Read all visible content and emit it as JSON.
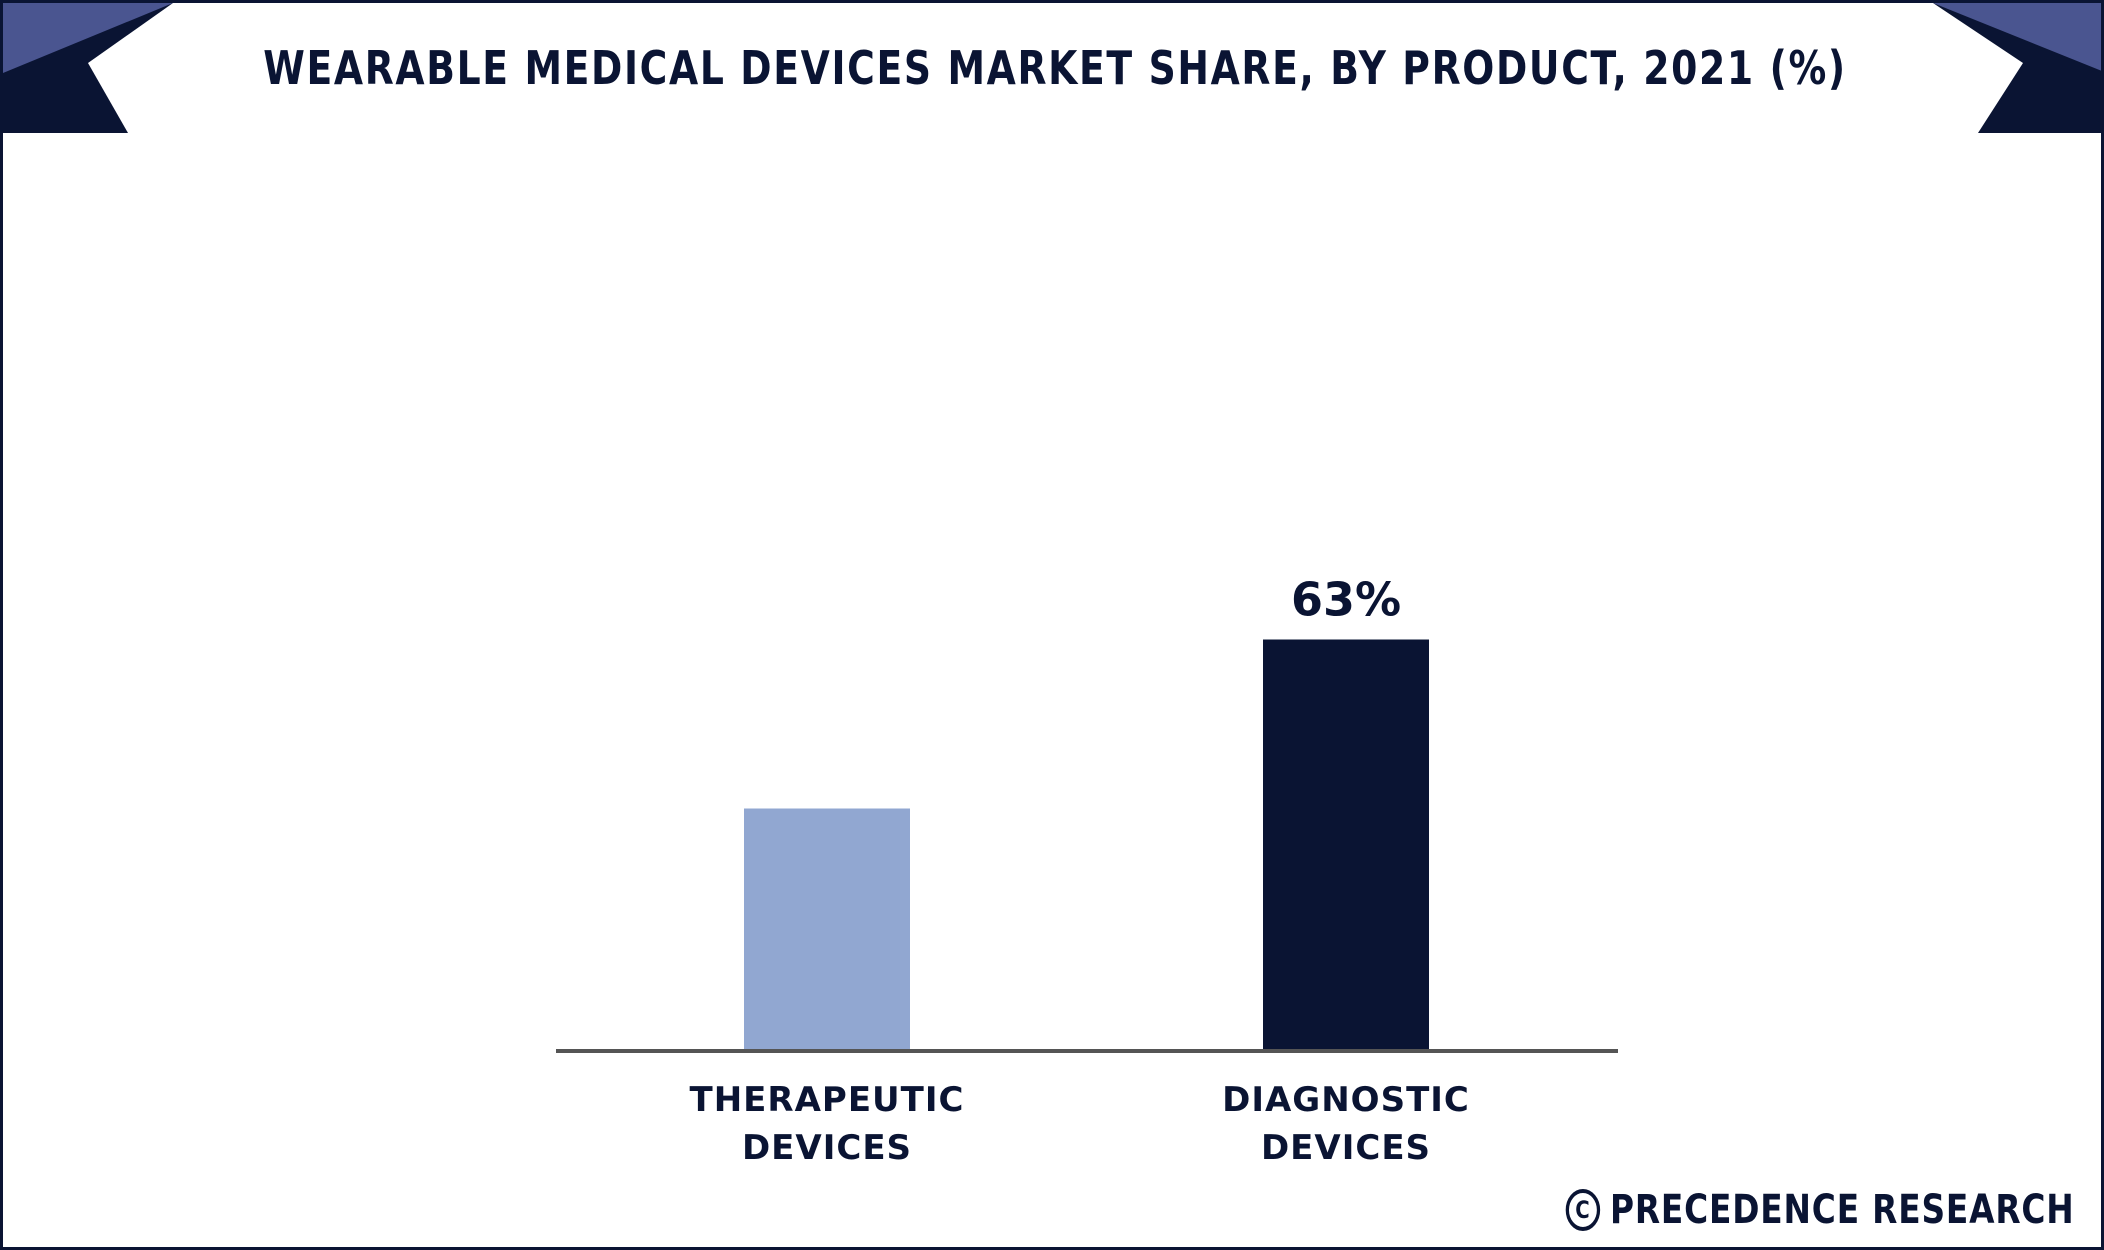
{
  "title": "WEARABLE MEDICAL DEVICES MARKET SHARE, BY PRODUCT, 2021 (%)",
  "footer": {
    "icon": "copyright-icon",
    "text": "PRECEDENCE RESEARCH"
  },
  "colors": {
    "navy": "#0a1433",
    "light_blue": "#91a7d1",
    "accent_triangle": "#4a5590",
    "axis": "#555555"
  },
  "chart_data": {
    "type": "bar",
    "title": "WEARABLE MEDICAL DEVICES MARKET SHARE, BY PRODUCT, 2021 (%)",
    "categories": [
      [
        "THERAPEUTIC",
        "DEVICES"
      ],
      [
        "DIAGNOSTIC",
        "DEVICES"
      ]
    ],
    "values": [
      37,
      63
    ],
    "data_labels": [
      "",
      "63%"
    ],
    "colors": [
      "#91a7d1",
      "#0a1433"
    ],
    "ylim": [
      0,
      100
    ],
    "grid": false,
    "legend": "none"
  }
}
